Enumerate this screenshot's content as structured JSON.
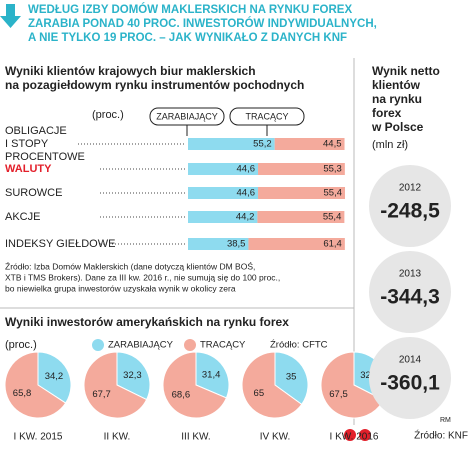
{
  "header": {
    "lines": [
      "WEDŁUG IZBY DOMÓW MAKLERSKICH NA RYNKU FOREX",
      "ZARABIA PONAD 40 PROC. INWESTORÓW INDYWIDUALNYCH,",
      "A NIE TYLKO 19 PROC. – JAK WYNIKAŁO Z DANYCH KNF"
    ]
  },
  "chart_data": [
    {
      "type": "bar",
      "orientation": "horizontal",
      "stacked": true,
      "title": [
        "Wyniki klientów krajowych biur maklerskich",
        "na pozagiełdowym rynku instrumentów pochodnych"
      ],
      "unit": "(proc.)",
      "categories": [
        [
          "OBLIGACJE",
          "I STOPY",
          "PROCENTOWE"
        ],
        [
          "WALUTY"
        ],
        [
          "SUROWCE"
        ],
        [
          "AKCJE"
        ],
        [
          "INDEKSY GIEŁDOWE"
        ]
      ],
      "highlight_category": 1,
      "highlight_color": "#e3202b",
      "series": [
        {
          "name": "ZARABIAJĄCY",
          "color": "#8edbef",
          "values": [
            55.2,
            44.6,
            44.6,
            44.2,
            38.5
          ],
          "value_labels": [
            "55,2",
            "44,6",
            "44,6",
            "44,2",
            "38,5"
          ]
        },
        {
          "name": "TRACĄCY",
          "color": "#f4aa9c",
          "values": [
            44.5,
            55.3,
            55.4,
            55.4,
            61.4
          ],
          "value_labels": [
            "44,5",
            "55,3",
            "55,4",
            "55,4",
            "61,4"
          ]
        }
      ],
      "xlim": [
        0,
        100
      ],
      "source": [
        "Źródło: Izba Domów Maklerskich (dane dotyczą klientów DM BOŚ,",
        "XTB i TMS Brokers). Dane za III kw. 2016 r., nie sumują się do 100 proc.,",
        "bo niewielka grupa inwestorów uzyskała wynik w okolicy zera"
      ]
    },
    {
      "type": "pie",
      "title": "Wyniki inwestorów amerykańskich na rynku forex",
      "unit": "(proc.)",
      "source": "Źródło: CFTC",
      "categories": [
        "I KW. 2015",
        "II KW.",
        "III KW.",
        "IV KW.",
        "I KW. 2016"
      ],
      "series": [
        {
          "name": "ZARABIAJĄCY",
          "color": "#8edbef",
          "values": [
            34.2,
            32.3,
            31.4,
            35,
            32.5
          ],
          "value_labels": [
            "34,2",
            "32,3",
            "31,4",
            "35",
            "32,5"
          ]
        },
        {
          "name": "TRACĄCY",
          "color": "#f4aa9c",
          "values": [
            65.8,
            67.7,
            68.6,
            65,
            67.5
          ],
          "value_labels": [
            "65,8",
            "67,7",
            "68,6",
            "65",
            "67,5"
          ]
        }
      ]
    },
    {
      "type": "stat",
      "title": [
        "Wynik netto",
        "klientów",
        "na rynku",
        "forex",
        "w Polsce"
      ],
      "unit": "(mln zł)",
      "color": "#e6e6e6",
      "categories": [
        "2012",
        "2013",
        "2014"
      ],
      "values": [
        -248.5,
        -344.3,
        -360.1
      ],
      "value_labels": [
        "-248,5",
        "-344,3",
        "-360,1"
      ]
    }
  ],
  "footer": {
    "credit": "RM",
    "source": "Źródło: KNF"
  }
}
